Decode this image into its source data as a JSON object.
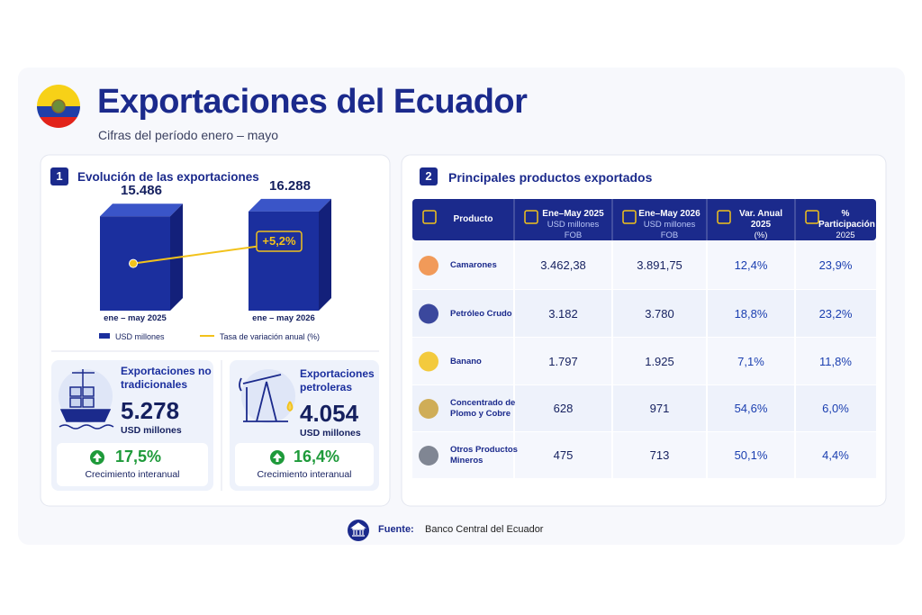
{
  "header": {
    "title": "Exportaciones del Ecuador",
    "subtitle": "Cifras del período enero – mayo"
  },
  "section1": {
    "number": "1",
    "title": "Evolución de las exportaciones"
  },
  "chart_data": {
    "type": "bar",
    "categories": [
      "ene – may 2025",
      "ene – may 2026"
    ],
    "series": [
      {
        "name": "USD millones",
        "color": "#1b2f9e",
        "values": [
          15486,
          16288
        ],
        "value_labels": [
          "15.486",
          "16.288"
        ]
      }
    ],
    "ylim": [
      0,
      17000
    ],
    "change": {
      "name": "Tasa de variación anual (%)",
      "color": "#f2c21b",
      "value": 5.2,
      "label": "+5,2%"
    }
  },
  "cards": [
    {
      "title": "Exportaciones no tradicionales",
      "value": "5.278",
      "unit": "USD millones",
      "growth": "17,5%",
      "growth_label": "Crecimiento interanual"
    },
    {
      "title": "Exportaciones petroleras",
      "value": "4.054",
      "unit": "USD millones",
      "growth": "16,4%",
      "growth_label": "Crecimiento interanual"
    }
  ],
  "section2": {
    "number": "2",
    "title": "Principales productos exportados"
  },
  "table": {
    "columns": [
      {
        "title": "Producto"
      },
      {
        "title": "Ene–May 2025",
        "subtitle": "USD millones FOB"
      },
      {
        "title": "Ene–May 2026",
        "subtitle": "USD millones FOB"
      },
      {
        "title": "Var. Anual 2025",
        "subtitle": "(%)"
      },
      {
        "title": "% Participación",
        "subtitle": "2025"
      }
    ],
    "rows": [
      [
        "Camarones",
        "3.462,38",
        "3.891,75",
        "12,4%",
        "23,9%"
      ],
      [
        "Petróleo Crudo",
        "3.182",
        "3.780",
        "18,8%",
        "23,2%"
      ],
      [
        "Banano",
        "1.797",
        "1.925",
        "7,1%",
        "11,8%"
      ],
      [
        "Concentrado de Plomo y Cobre",
        "628",
        "971",
        "54,6%",
        "6,0%"
      ],
      [
        "Otros Productos Mineros",
        "475",
        "713",
        "50,1%",
        "4,4%"
      ]
    ]
  },
  "footer": {
    "label": "Fuente:",
    "text": "Banco Central del Ecuador"
  }
}
